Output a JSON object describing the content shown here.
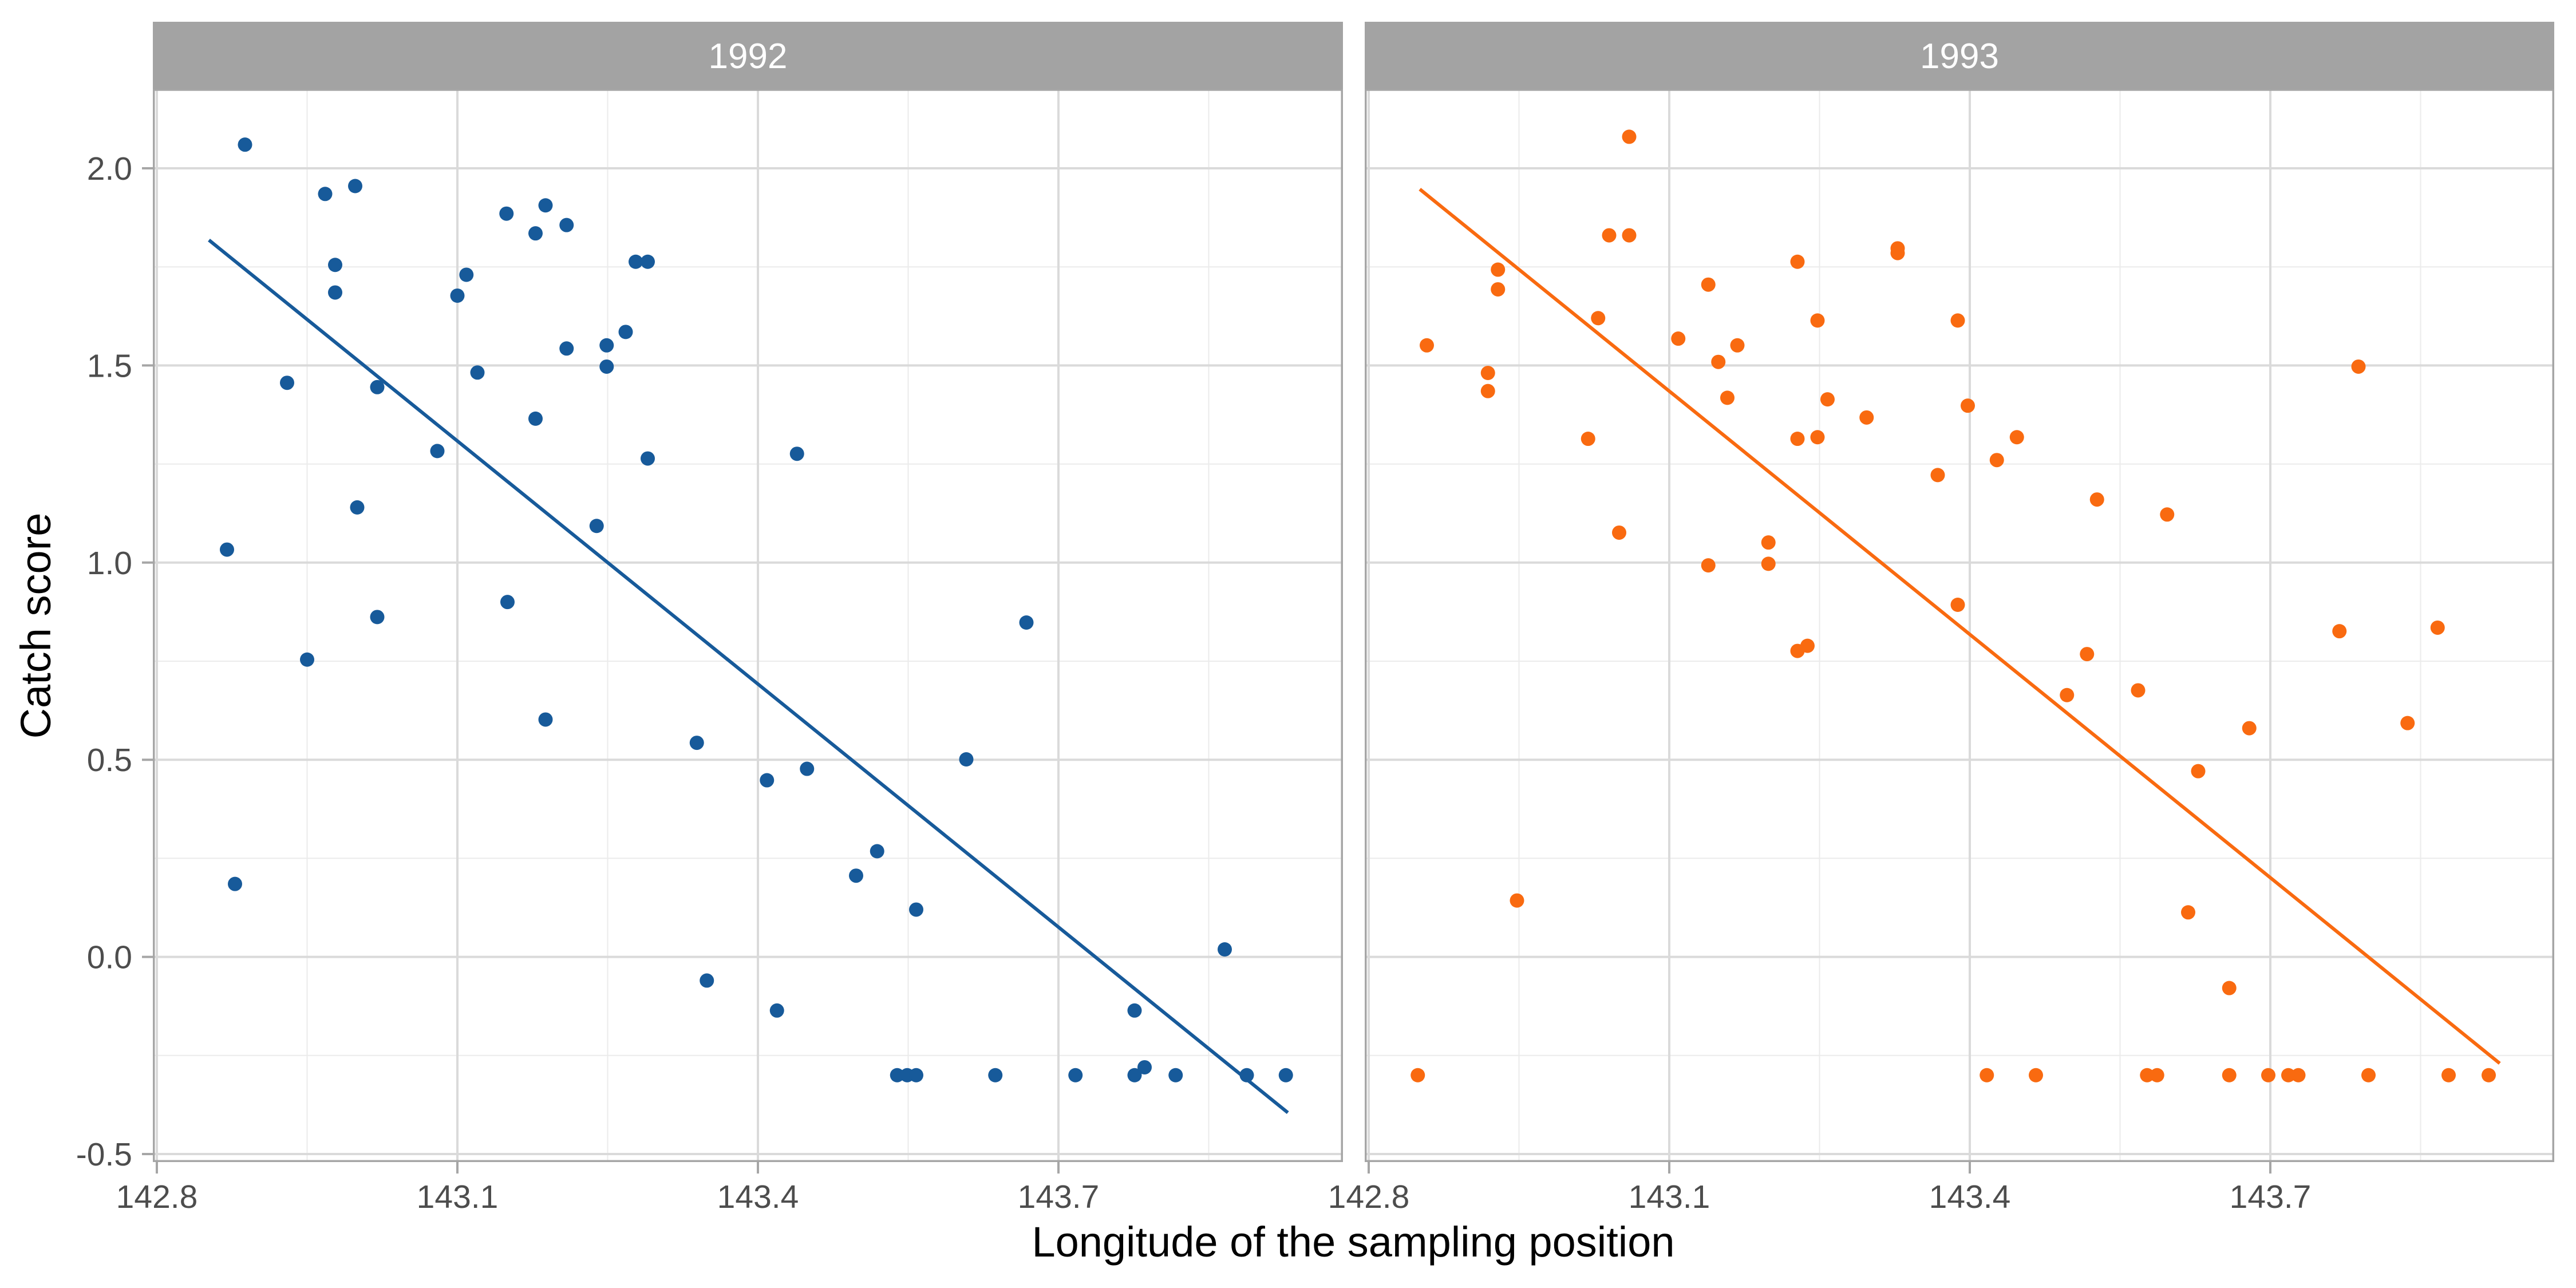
{
  "chart_data": {
    "type": "scatter",
    "xlabel": "Longitude of the sampling position",
    "ylabel": "Catch score",
    "xlim": [
      142.796,
      143.984
    ],
    "ylim": [
      -0.52,
      2.2
    ],
    "x_ticks": [
      142.8,
      143.1,
      143.4,
      143.7
    ],
    "x_tick_labels": [
      "142.8",
      "143.1",
      "143.4",
      "143.7"
    ],
    "y_ticks": [
      -0.5,
      0.0,
      0.5,
      1.0,
      1.5,
      2.0
    ],
    "y_tick_labels": [
      "-0.5",
      "0.0",
      "0.5",
      "1.0",
      "1.5",
      "2.0"
    ],
    "grid": true,
    "legend": "none",
    "facets": [
      {
        "label": "1992",
        "color": "#175A9A",
        "trend_line": {
          "x": [
            142.852,
            143.929
          ],
          "y": [
            1.818,
            -0.395
          ]
        },
        "points": [
          [
            142.888,
            2.06
          ],
          [
            142.87,
            1.033
          ],
          [
            142.878,
            0.185
          ],
          [
            142.93,
            1.456
          ],
          [
            142.95,
            0.754
          ],
          [
            142.968,
            1.935
          ],
          [
            142.978,
            1.755
          ],
          [
            142.978,
            1.685
          ],
          [
            142.998,
            1.955
          ],
          [
            143.0,
            1.14
          ],
          [
            143.02,
            1.445
          ],
          [
            143.02,
            0.862
          ],
          [
            143.08,
            1.283
          ],
          [
            143.1,
            1.677
          ],
          [
            143.109,
            1.73
          ],
          [
            143.12,
            1.482
          ],
          [
            143.149,
            1.885
          ],
          [
            143.15,
            0.9
          ],
          [
            143.178,
            1.835
          ],
          [
            143.178,
            1.365
          ],
          [
            143.188,
            1.906
          ],
          [
            143.188,
            0.602
          ],
          [
            143.209,
            1.856
          ],
          [
            143.209,
            1.543
          ],
          [
            143.239,
            1.093
          ],
          [
            143.249,
            1.551
          ],
          [
            143.249,
            1.497
          ],
          [
            143.268,
            1.585
          ],
          [
            143.278,
            1.763
          ],
          [
            143.29,
            1.763
          ],
          [
            143.29,
            1.264
          ],
          [
            143.339,
            0.543
          ],
          [
            143.349,
            -0.06
          ],
          [
            143.409,
            0.448
          ],
          [
            143.419,
            -0.136
          ],
          [
            143.439,
            1.276
          ],
          [
            143.449,
            0.477
          ],
          [
            143.498,
            0.206
          ],
          [
            143.519,
            0.268
          ],
          [
            143.539,
            -0.3
          ],
          [
            143.549,
            -0.3
          ],
          [
            143.558,
            -0.3
          ],
          [
            143.558,
            0.12
          ],
          [
            143.608,
            0.501
          ],
          [
            143.637,
            -0.3
          ],
          [
            143.668,
            0.848
          ],
          [
            143.717,
            -0.3
          ],
          [
            143.776,
            -0.136
          ],
          [
            143.776,
            -0.3
          ],
          [
            143.786,
            -0.28
          ],
          [
            143.817,
            -0.3
          ],
          [
            143.866,
            0.019
          ],
          [
            143.888,
            -0.3
          ],
          [
            143.927,
            -0.3
          ]
        ]
      },
      {
        "label": "1993",
        "color": "#F96A10",
        "trend_line": {
          "x": [
            142.851,
            143.929
          ],
          "y": [
            1.947,
            -0.27
          ]
        },
        "points": [
          [
            142.858,
            1.551
          ],
          [
            142.849,
            -0.3
          ],
          [
            142.919,
            1.481
          ],
          [
            142.919,
            1.435
          ],
          [
            142.929,
            1.743
          ],
          [
            142.929,
            1.693
          ],
          [
            142.948,
            0.143
          ],
          [
            143.019,
            1.314
          ],
          [
            143.029,
            1.62
          ],
          [
            143.04,
            1.83
          ],
          [
            143.05,
            1.076
          ],
          [
            143.06,
            2.08
          ],
          [
            143.06,
            1.83
          ],
          [
            143.109,
            1.568
          ],
          [
            143.139,
            1.705
          ],
          [
            143.139,
            0.993
          ],
          [
            143.149,
            1.509
          ],
          [
            143.158,
            1.418
          ],
          [
            143.168,
            1.551
          ],
          [
            143.199,
            1.051
          ],
          [
            143.199,
            0.997
          ],
          [
            143.228,
            1.763
          ],
          [
            143.228,
            1.314
          ],
          [
            143.228,
            0.776
          ],
          [
            143.238,
            0.789
          ],
          [
            143.248,
            1.614
          ],
          [
            143.248,
            1.318
          ],
          [
            143.258,
            1.414
          ],
          [
            143.297,
            1.368
          ],
          [
            143.328,
            1.797
          ],
          [
            143.328,
            1.785
          ],
          [
            143.368,
            1.222
          ],
          [
            143.388,
            1.614
          ],
          [
            143.388,
            0.893
          ],
          [
            143.398,
            1.398
          ],
          [
            143.417,
            -0.3
          ],
          [
            143.427,
            1.26
          ],
          [
            143.447,
            1.318
          ],
          [
            143.466,
            -0.3
          ],
          [
            143.497,
            0.664
          ],
          [
            143.517,
            0.768
          ],
          [
            143.527,
            1.16
          ],
          [
            143.568,
            0.676
          ],
          [
            143.577,
            -0.3
          ],
          [
            143.587,
            -0.3
          ],
          [
            143.597,
            1.122
          ],
          [
            143.618,
            0.113
          ],
          [
            143.628,
            0.471
          ],
          [
            143.659,
            -0.079
          ],
          [
            143.659,
            -0.3
          ],
          [
            143.679,
            0.58
          ],
          [
            143.698,
            -0.3
          ],
          [
            143.718,
            -0.3
          ],
          [
            143.728,
            -0.3
          ],
          [
            143.769,
            0.826
          ],
          [
            143.788,
            1.497
          ],
          [
            143.798,
            -0.3
          ],
          [
            143.837,
            0.593
          ],
          [
            143.867,
            0.835
          ],
          [
            143.878,
            -0.3
          ],
          [
            143.918,
            -0.3
          ]
        ]
      }
    ]
  }
}
